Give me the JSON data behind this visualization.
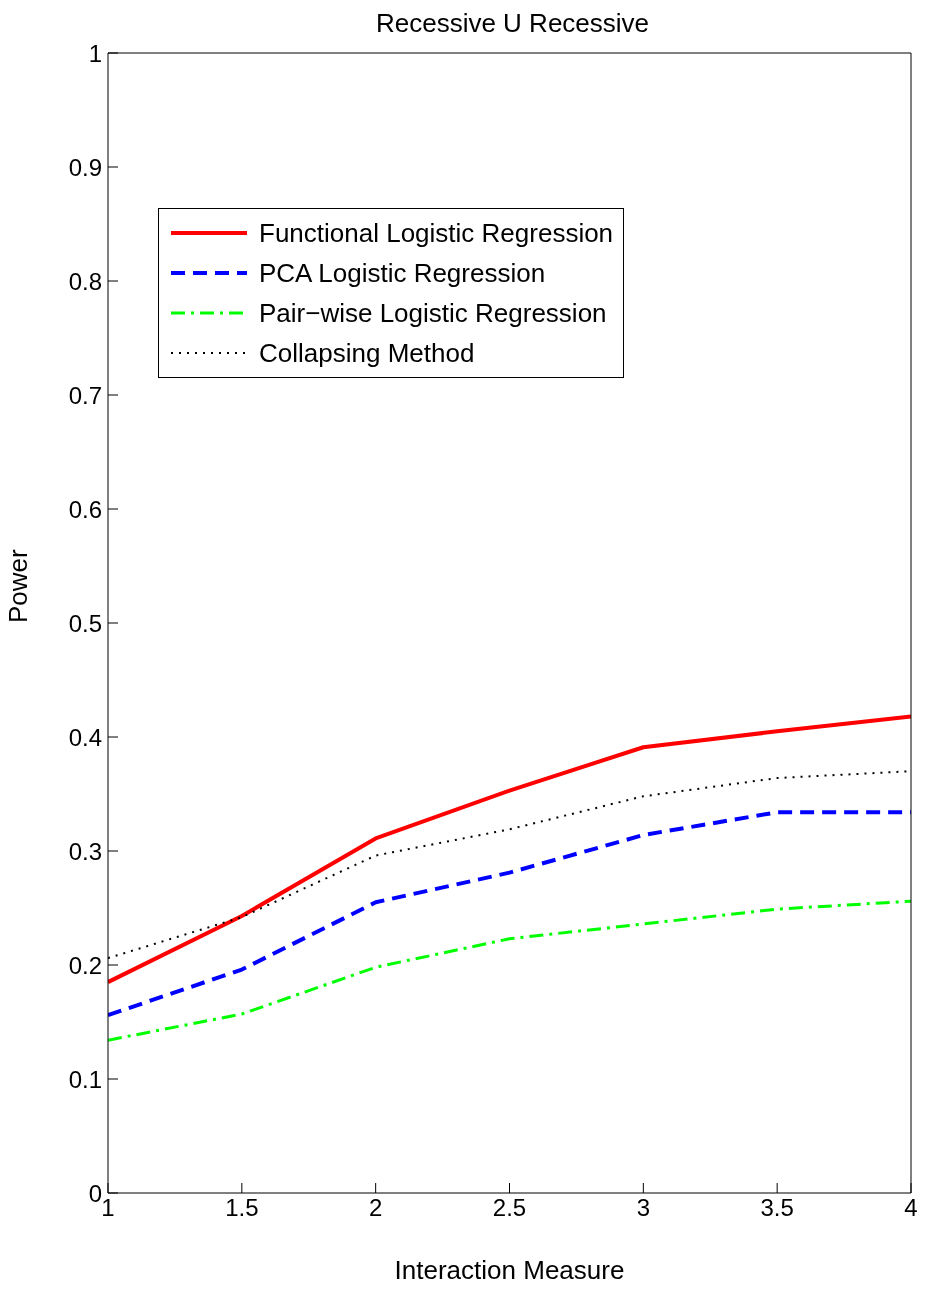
{
  "chart_data": {
    "type": "line",
    "title": "Recessive U Recessive",
    "xlabel": "Interaction Measure",
    "ylabel": "Power",
    "x": [
      1,
      1.5,
      2,
      2.5,
      3,
      3.5,
      4
    ],
    "series": [
      {
        "name": "Functional Logistic Regression",
        "color": "#ff0000",
        "line_style": "solid",
        "values": [
          0.185,
          0.243,
          0.311,
          0.353,
          0.391,
          0.405,
          0.418
        ]
      },
      {
        "name": "PCA Logistic Regression",
        "color": "#0000ff",
        "line_style": "dashed",
        "values": [
          0.156,
          0.196,
          0.255,
          0.281,
          0.314,
          0.334,
          0.334
        ]
      },
      {
        "name": "Pair−wise Logistic Regression",
        "color": "#00ff00",
        "line_style": "dashdot",
        "values": [
          0.134,
          0.157,
          0.198,
          0.223,
          0.236,
          0.249,
          0.256
        ]
      },
      {
        "name": "Collapsing Method",
        "color": "#000000",
        "line_style": "dotted",
        "values": [
          0.206,
          0.242,
          0.296,
          0.319,
          0.348,
          0.364,
          0.37
        ]
      }
    ],
    "xlim": [
      1,
      4
    ],
    "xticks": [
      1,
      1.5,
      2,
      2.5,
      3,
      3.5,
      4
    ],
    "ylim": [
      0,
      1
    ],
    "yticks": [
      0,
      0.1,
      0.2,
      0.3,
      0.4,
      0.5,
      0.6,
      0.7,
      0.8,
      0.9,
      1
    ],
    "grid": false,
    "legend": "top left",
    "marker": "none"
  }
}
